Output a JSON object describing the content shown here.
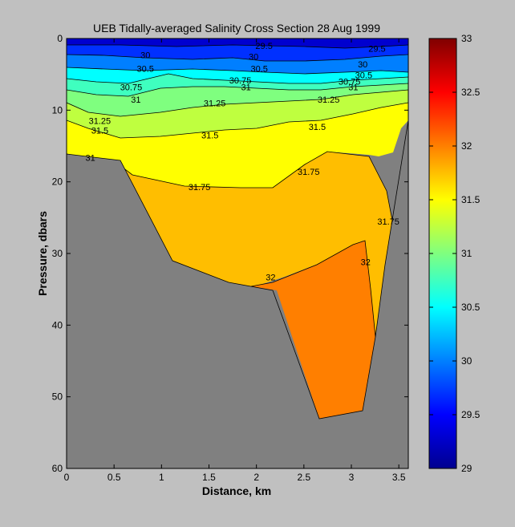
{
  "chart_data": {
    "type": "contour",
    "title": "UEB  Tidally-averaged Salinity Cross Section  28 Aug 1999",
    "xlabel": "Distance, km",
    "ylabel": "Pressure, dbars",
    "xlim": [
      0,
      3.6
    ],
    "ylim": [
      0,
      60
    ],
    "y_reversed": true,
    "xticks": [
      "0",
      "0.5",
      "1",
      "1.5",
      "2",
      "2.5",
      "3",
      "3.5"
    ],
    "yticks": [
      "0",
      "10",
      "20",
      "30",
      "40",
      "50",
      "60"
    ],
    "colorbar": {
      "range": [
        29,
        33
      ],
      "colormap": "jet",
      "ticks": [
        "29",
        "29.5",
        "30",
        "30.5",
        "31",
        "31.5",
        "32",
        "32.5",
        "33"
      ]
    },
    "contour_labels": [
      {
        "text": "29.5",
        "x": 2.08,
        "y": 1.0
      },
      {
        "text": "29.5",
        "x": 3.27,
        "y": 1.4
      },
      {
        "text": "30",
        "x": 0.83,
        "y": 2.3
      },
      {
        "text": "30",
        "x": 1.97,
        "y": 2.5
      },
      {
        "text": "30",
        "x": 3.12,
        "y": 3.6
      },
      {
        "text": "30.5",
        "x": 0.83,
        "y": 4.2
      },
      {
        "text": "30.5",
        "x": 2.03,
        "y": 4.2
      },
      {
        "text": "30.5",
        "x": 3.13,
        "y": 5.1
      },
      {
        "text": "30.75",
        "x": 0.68,
        "y": 6.8
      },
      {
        "text": "30.75",
        "x": 1.83,
        "y": 5.8
      },
      {
        "text": "30.75",
        "x": 2.98,
        "y": 6.0
      },
      {
        "text": "31",
        "x": 0.73,
        "y": 8.5
      },
      {
        "text": "31",
        "x": 1.89,
        "y": 6.8
      },
      {
        "text": "31",
        "x": 3.02,
        "y": 6.8
      },
      {
        "text": "31.25",
        "x": 0.35,
        "y": 11.5
      },
      {
        "text": "31.25",
        "x": 1.56,
        "y": 9.0
      },
      {
        "text": "31.25",
        "x": 2.76,
        "y": 8.5
      },
      {
        "text": "31.5",
        "x": 0.35,
        "y": 12.8
      },
      {
        "text": "31.5",
        "x": 1.51,
        "y": 13.5
      },
      {
        "text": "31.5",
        "x": 2.64,
        "y": 12.3
      },
      {
        "text": "31.75",
        "x": 1.4,
        "y": 20.7
      },
      {
        "text": "31.75",
        "x": 2.55,
        "y": 18.6
      },
      {
        "text": "31.75",
        "x": 3.39,
        "y": 25.5
      },
      {
        "text": "31",
        "x": 0.25,
        "y": 16.6
      },
      {
        "text": "32",
        "x": 2.15,
        "y": 33.3
      },
      {
        "text": "32",
        "x": 3.15,
        "y": 31.2
      }
    ]
  }
}
